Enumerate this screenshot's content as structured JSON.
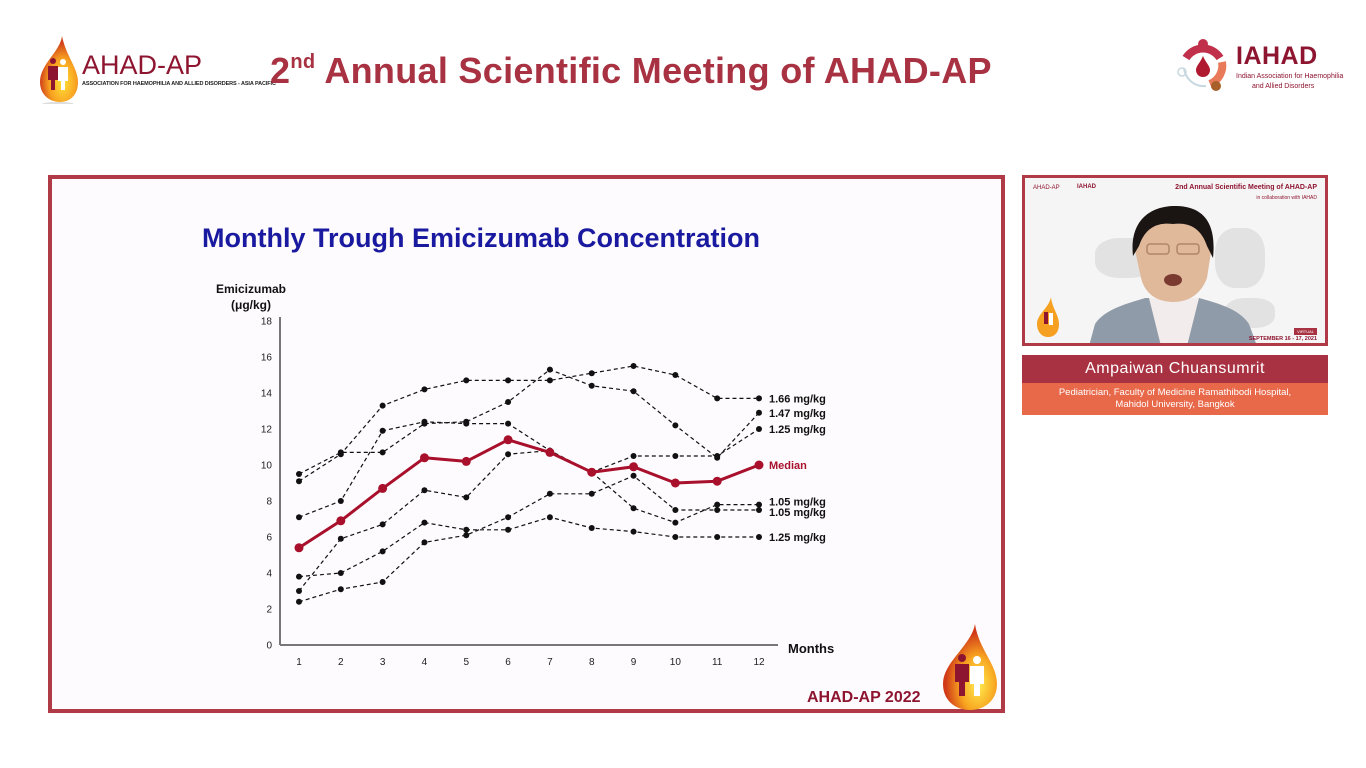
{
  "header": {
    "left_logo": {
      "wordmark": "AHAD-AP",
      "tagline": "ASSOCIATION FOR HAEMOPHILIA AND ALLIED DISORDERS - ASIA PACIFIC"
    },
    "title_ordinal": "2",
    "title_suffix": "nd",
    "title_rest": " Annual Scientific Meeting of AHAD-AP",
    "right_logo": {
      "wordmark": "IAHAD",
      "line1": "Indian Association for Haemophilia",
      "line2": "and Allied Disorders"
    }
  },
  "slide": {
    "footer": "AHAD-AP 2022",
    "accent_color": "#b03a46"
  },
  "speaker": {
    "video": {
      "mini_logo_left": "AHAD-AP",
      "mini_logo_right": "IAHAD",
      "title": "2nd Annual Scientific Meeting of AHAD-AP",
      "subtitle": "in collaboration with IAHAD",
      "badge": "VIRTUAL",
      "dates": "SEPTEMBER 16 - 17, 2021"
    },
    "name": "Ampaiwan Chuansumrit",
    "role_line1": "Pediatrician, Faculty of Medicine Ramathibodi Hospital,",
    "role_line2": "Mahidol University, Bangkok"
  },
  "chart_data": {
    "type": "line",
    "title": "Monthly Trough Emicizumab Concentration",
    "ylabel_line1": "Emicizumab",
    "ylabel_line2": "(μg/kg)",
    "xlabel": "Months",
    "x": [
      1,
      2,
      3,
      4,
      5,
      6,
      7,
      8,
      9,
      10,
      11,
      12
    ],
    "xticks": [
      "1",
      "2",
      "3",
      "4",
      "5",
      "6",
      "7",
      "8",
      "9",
      "10",
      "11",
      "12"
    ],
    "ylim": [
      0,
      18
    ],
    "yticks": [
      "0",
      "2",
      "4",
      "6",
      "8",
      "10",
      "12",
      "14",
      "16",
      "18"
    ],
    "grid": false,
    "median_color": "#a8102c",
    "series_color": "#111111",
    "series": [
      {
        "name": "1.66 mg/kg",
        "style": "dashed",
        "values": [
          9.1,
          10.6,
          13.3,
          14.2,
          14.7,
          14.7,
          14.7,
          15.1,
          15.5,
          15.0,
          13.7,
          13.7
        ]
      },
      {
        "name": "1.47 mg/kg",
        "style": "dashed",
        "values": [
          9.5,
          10.7,
          10.7,
          12.3,
          12.4,
          13.5,
          15.3,
          14.4,
          14.1,
          12.2,
          10.4,
          12.9
        ]
      },
      {
        "name": "1.25 mg/kg",
        "style": "dashed",
        "values": [
          7.1,
          8.0,
          11.9,
          12.4,
          12.3,
          12.3,
          10.8,
          9.6,
          10.5,
          10.5,
          10.5,
          12.0
        ]
      },
      {
        "name": "Median",
        "style": "solid",
        "values": [
          5.4,
          6.9,
          8.7,
          10.4,
          10.2,
          11.4,
          10.7,
          9.6,
          9.9,
          9.0,
          9.1,
          10.0
        ]
      },
      {
        "name": "1.05 mg/kg",
        "style": "dashed",
        "values": [
          3.0,
          5.9,
          6.7,
          8.6,
          8.2,
          10.6,
          10.8,
          9.6,
          7.6,
          6.8,
          7.8,
          7.8
        ]
      },
      {
        "name": "1.05 mg/kg",
        "style": "dashed",
        "values": [
          2.4,
          3.1,
          3.5,
          5.7,
          6.1,
          7.1,
          8.4,
          8.4,
          9.4,
          7.5,
          7.5,
          7.5
        ]
      },
      {
        "name": "1.25 mg/kg",
        "style": "dashed",
        "values": [
          3.8,
          4.0,
          5.2,
          6.8,
          6.4,
          6.4,
          7.1,
          6.5,
          6.3,
          6.0,
          6.0,
          6.0
        ]
      }
    ]
  }
}
